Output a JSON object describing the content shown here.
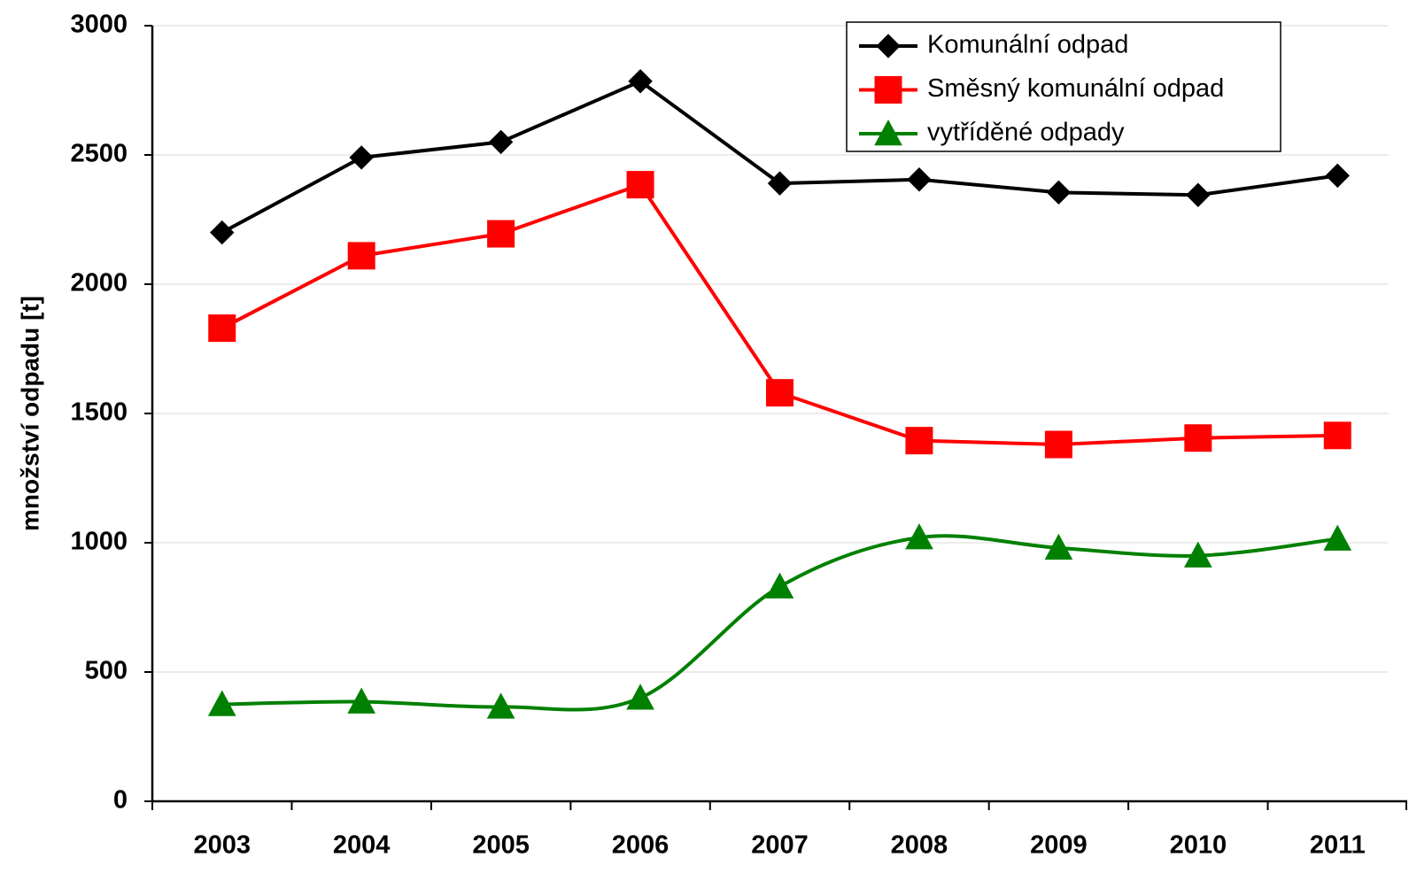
{
  "chart_data": {
    "type": "line",
    "y_label": "množství odpadu [t]",
    "categories": [
      "2003",
      "2004",
      "2005",
      "2006",
      "2007",
      "2008",
      "2009",
      "2010",
      "2011"
    ],
    "series": [
      {
        "name": "Komunální odpad",
        "color": "#000000",
        "marker": "diamond",
        "smooth": false,
        "values": [
          2200,
          2490,
          2550,
          2785,
          2390,
          2405,
          2355,
          2345,
          2420
        ]
      },
      {
        "name": "Směsný komunální odpad",
        "color": "#ff0000",
        "marker": "square",
        "smooth": false,
        "values": [
          1830,
          2110,
          2195,
          2385,
          1580,
          1395,
          1380,
          1405,
          1415
        ]
      },
      {
        "name": "vytříděné odpady",
        "color": "#008000",
        "marker": "triangle",
        "smooth": true,
        "values": [
          375,
          385,
          365,
          400,
          830,
          1020,
          980,
          950,
          1015
        ]
      }
    ],
    "ylim": [
      0,
      3000
    ],
    "yticks": [
      0,
      500,
      1000,
      1500,
      2000,
      2500,
      3000
    ],
    "grid": true,
    "legend": "upper right"
  }
}
